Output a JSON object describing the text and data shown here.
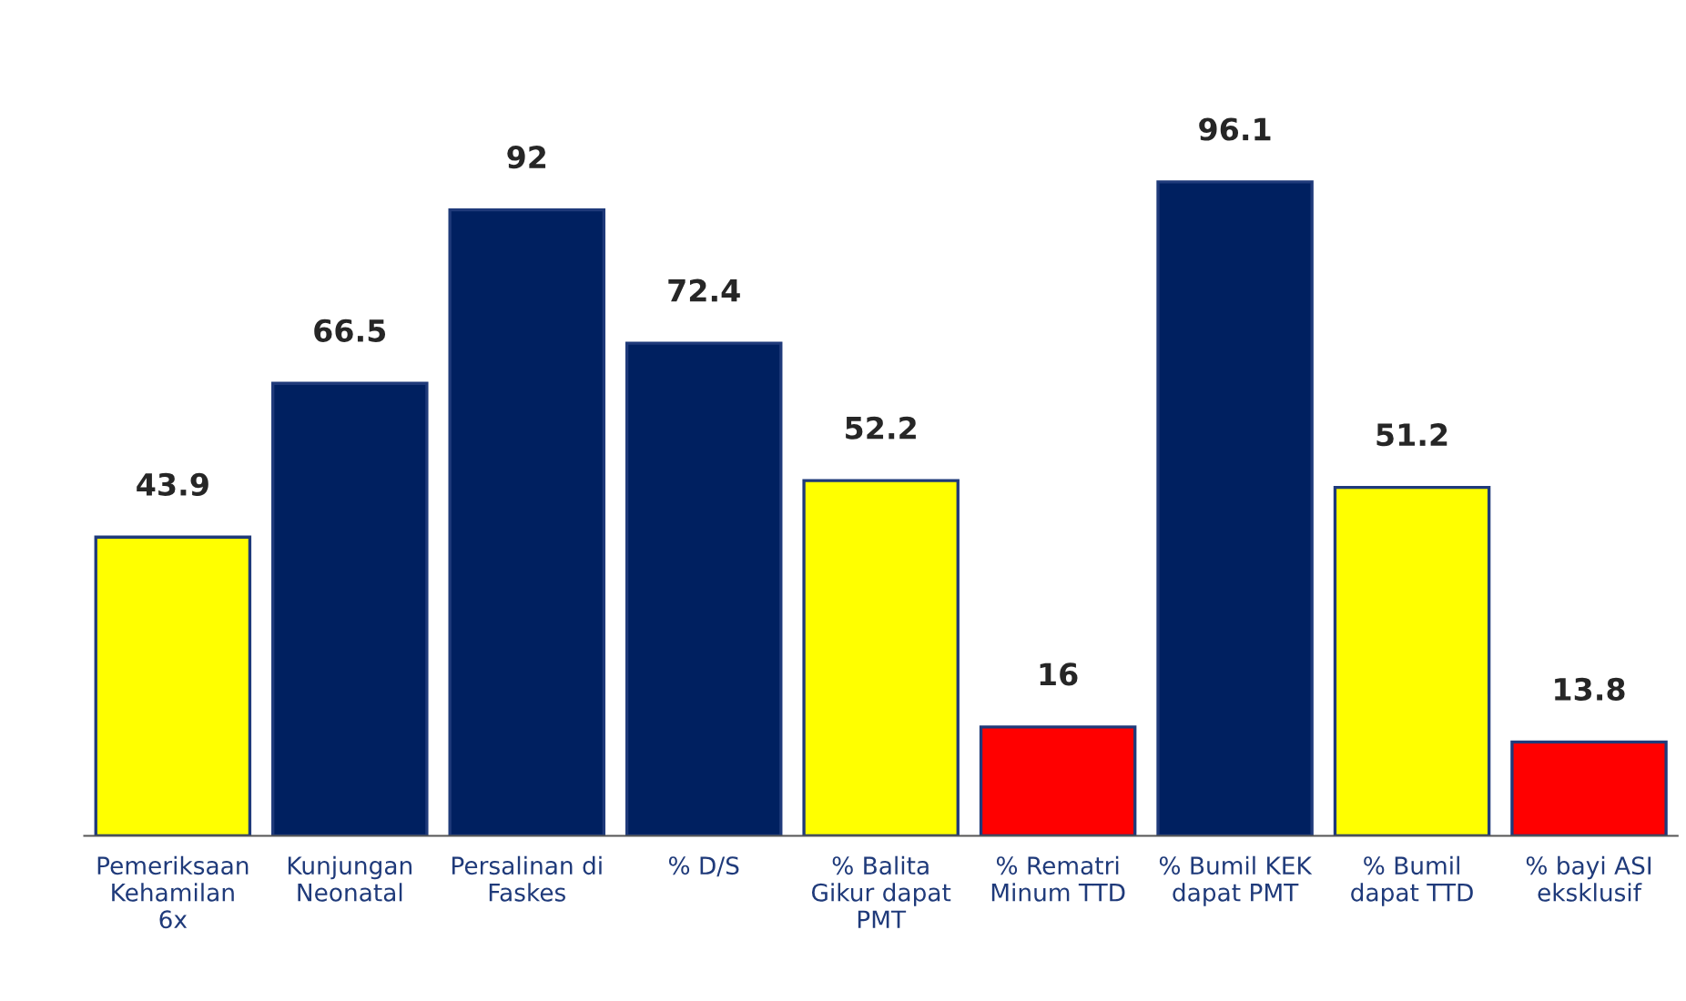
{
  "chart_data": {
    "type": "bar",
    "categories": [
      "Pemeriksaan\nKehamilan\n6x",
      "Kunjungan\nNeonatal",
      "Persalinan di\nFaskes",
      "% D/S",
      "% Balita\nGikur dapat\nPMT",
      "% Rematri\nMinum TTD",
      "% Bumil KEK\ndapat PMT",
      "% Bumil\ndapat TTD",
      "% bayi ASI\neksklusif"
    ],
    "values": [
      43.9,
      66.5,
      92,
      72.4,
      52.2,
      16,
      96.1,
      51.2,
      13.8
    ],
    "colors": [
      "#ffff00",
      "#002060",
      "#002060",
      "#002060",
      "#ffff00",
      "#ff0000",
      "#002060",
      "#ffff00",
      "#ff0000"
    ],
    "data_labels": true,
    "grid": false,
    "legend": false
  }
}
